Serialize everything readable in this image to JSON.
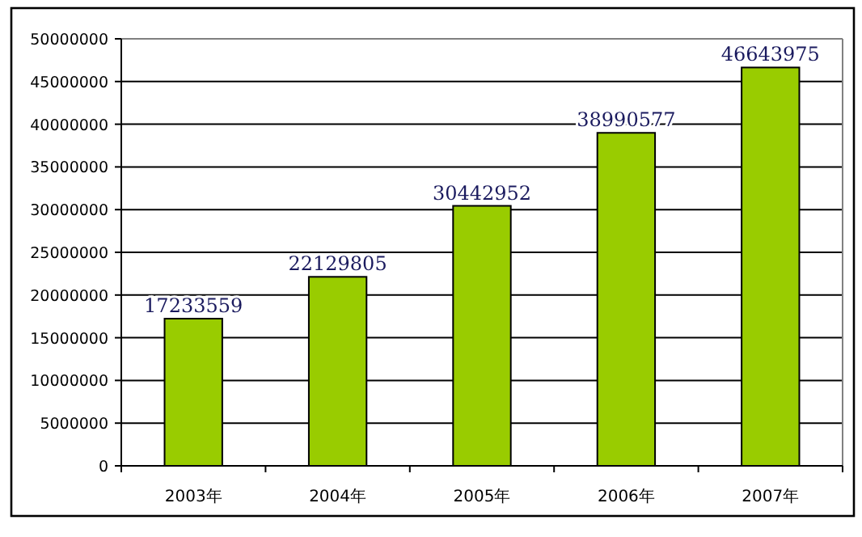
{
  "chart_data": {
    "type": "bar",
    "categories": [
      "2003年",
      "2004年",
      "2005年",
      "2006年",
      "2007年"
    ],
    "values": [
      17233559,
      22129805,
      30442952,
      38990577,
      46643975
    ],
    "color": "#99cc00",
    "data_labels": true,
    "ylim": [
      0,
      50000000
    ],
    "yticks": [
      0,
      5000000,
      10000000,
      15000000,
      20000000,
      25000000,
      30000000,
      35000000,
      40000000,
      45000000,
      50000000
    ],
    "grid": "y"
  }
}
